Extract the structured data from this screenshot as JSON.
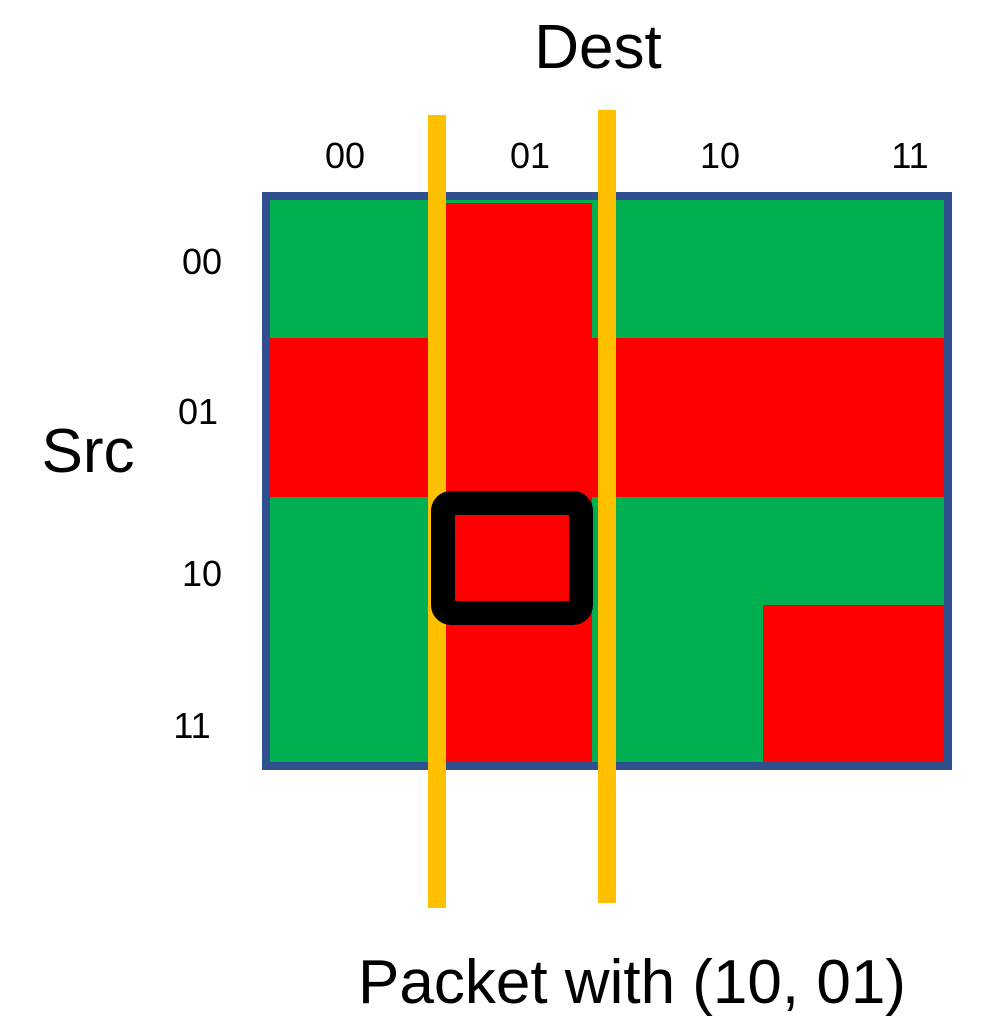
{
  "title": "Dest",
  "row_axis_label": "Src",
  "caption": "Packet with (10, 01)",
  "columns": [
    "00",
    "01",
    "10",
    "11"
  ],
  "rows": [
    "00",
    "01",
    "10",
    "11"
  ],
  "colors": {
    "allowed": "#00b050",
    "blocked": "#ff0000",
    "frame": "#2f4f8f",
    "marker_lines": "#ffc000",
    "highlight_box": "#000000"
  },
  "blocked_regions": [
    {
      "name": "column-01",
      "columns": [
        "01"
      ],
      "rows": [
        "00",
        "01",
        "10",
        "11"
      ]
    },
    {
      "name": "row-01",
      "columns": [
        "00",
        "01",
        "10",
        "11"
      ],
      "rows": [
        "01"
      ]
    },
    {
      "name": "cell-11-11",
      "columns": [
        "11"
      ],
      "rows": [
        "11"
      ]
    }
  ],
  "marker_lines": {
    "around_column": "01"
  },
  "highlighted_cell": {
    "src": "10",
    "dest": "01"
  }
}
